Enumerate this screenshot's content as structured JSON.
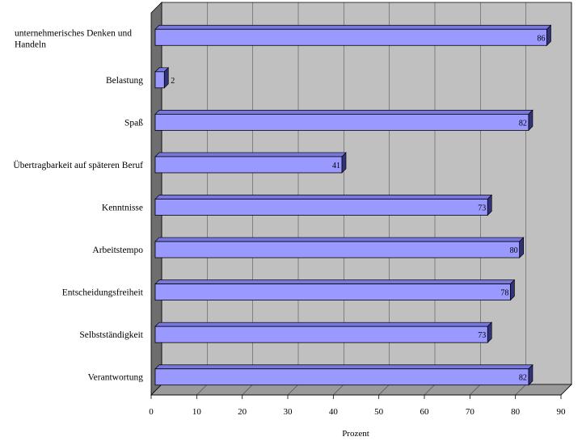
{
  "chart_data": {
    "type": "bar",
    "orientation": "horizontal",
    "style": "3d",
    "categories": [
      "unternehmerisches Denken und Handeln",
      "Belastung",
      "Spaß",
      "Übertragbarkeit auf späteren Beruf",
      "Kenntnisse",
      "Arbeitstempo",
      "Entscheidungsfreiheit",
      "Selbstständigkeit",
      "Verantwortung"
    ],
    "category_lines": [
      [
        "unternehmerisches Denken und",
        "Handeln"
      ],
      [
        "Belastung"
      ],
      [
        "Spaß"
      ],
      [
        "Übertragbarkeit auf späteren Beruf"
      ],
      [
        "Kenntnisse"
      ],
      [
        "Arbeitstempo"
      ],
      [
        "Entscheidungsfreiheit"
      ],
      [
        "Selbstständigkeit"
      ],
      [
        "Verantwortung"
      ]
    ],
    "values": [
      86,
      2,
      82,
      41,
      73,
      80,
      78,
      73,
      82
    ],
    "data_labels": [
      "86",
      "2",
      "82",
      "41",
      "73",
      "80",
      "78",
      "73",
      "82"
    ],
    "xlabel": "Prozent",
    "xlim": [
      0,
      90
    ],
    "xticks": [
      "0",
      "10",
      "20",
      "30",
      "40",
      "50",
      "60",
      "70",
      "80",
      "90"
    ],
    "grid": true,
    "legend": "none",
    "colors": {
      "bar_face": "#9999ff",
      "bar_top": "#7777dd",
      "bar_side": "#33337a",
      "wall": "#c0c0c0",
      "floor": "#9a9a9a",
      "side_wall": "#6e6e6e",
      "grid": "#000000"
    }
  }
}
